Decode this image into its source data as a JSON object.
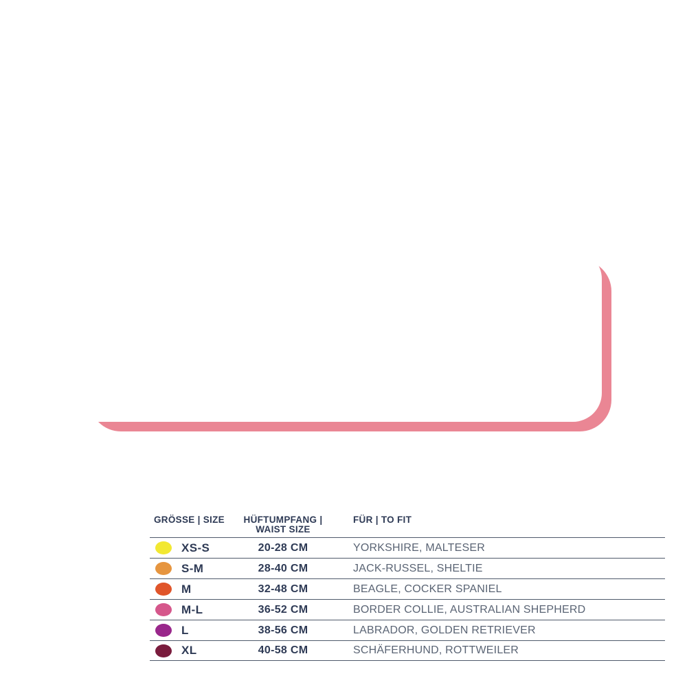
{
  "chart_data": {
    "type": "table",
    "title": "",
    "columns": [
      {
        "label": "GRÖSSE | SIZE"
      },
      {
        "label": "HÜFTUMPFANG | WAIST SIZE",
        "label_line1": "HÜFTUMPFANG |",
        "label_line2": "WAIST SIZE"
      },
      {
        "label": "FÜR | TO FIT"
      }
    ],
    "rows": [
      {
        "dot_color": "#f2e832",
        "size": "XS-S",
        "waist_cm": "20-28 CM",
        "to_fit": "YORKSHIRE, MALTESER"
      },
      {
        "dot_color": "#e6953f",
        "size": "S-M",
        "waist_cm": "28-40 CM",
        "to_fit": "JACK-RUSSEL, SHELTIE"
      },
      {
        "dot_color": "#e0552a",
        "size": "M",
        "waist_cm": "32-48 CM",
        "to_fit": "BEAGLE, COCKER SPANIEL"
      },
      {
        "dot_color": "#d5578b",
        "size": "M-L",
        "waist_cm": "36-52 CM",
        "to_fit": "BORDER COLLIE, AUSTRALIAN SHEPHERD"
      },
      {
        "dot_color": "#99278b",
        "size": "L",
        "waist_cm": "38-56 CM",
        "to_fit": "LABRADOR, GOLDEN RETRIEVER"
      },
      {
        "dot_color": "#7a1c3d",
        "size": "XL",
        "waist_cm": "40-58 CM",
        "to_fit": "SCHÄFERHUND, ROTTWEILER"
      }
    ],
    "layout": {
      "grid": "horizontal-row-dividers",
      "legend_position": "in-row-dots"
    }
  },
  "colors": {
    "accent_pink_frame": "#ea8694",
    "text_navy": "#2e3a55",
    "text_gray_blue": "#5a6474",
    "divider_line": "#4e596a",
    "card_background": "#ffffff"
  }
}
